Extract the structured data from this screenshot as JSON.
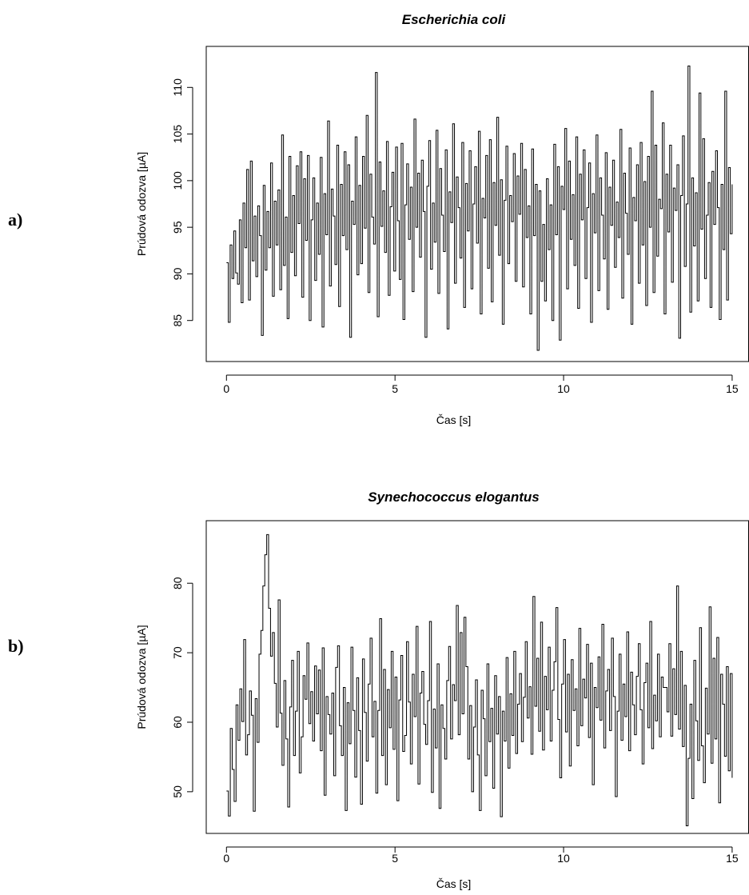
{
  "panels": {
    "a": {
      "letter": "a)"
    },
    "b": {
      "letter": "b)"
    }
  },
  "chart_data": [
    {
      "type": "line",
      "title": "Escherichia coli",
      "xlabel": "Čas [s]",
      "ylabel": "Prúdová odozva [µA]",
      "xlim": [
        -0.6,
        15.5
      ],
      "ylim": [
        80.6,
        114.4
      ],
      "xticks": [
        0,
        5,
        10,
        15
      ],
      "yticks": [
        85,
        90,
        95,
        100,
        105,
        110
      ],
      "grid": false,
      "legend": "none",
      "series": [
        {
          "x_start": 0,
          "x_end": 15,
          "x_step": 0.025,
          "y": [
            91.2,
            84.8,
            93.1,
            89.5,
            94.6,
            90.1,
            88.9,
            95.8,
            86.9,
            97.6,
            92.8,
            101.2,
            87.2,
            102.1,
            91.4,
            96.2,
            89.7,
            97.3,
            94.1,
            83.4,
            99.5,
            90.4,
            96.7,
            92.8,
            101.9,
            87.6,
            97.8,
            93.1,
            99.0,
            88.3,
            104.9,
            90.9,
            96.1,
            85.2,
            102.6,
            92.3,
            98.4,
            89.8,
            101.6,
            95.4,
            103.1,
            87.5,
            100.2,
            93.6,
            102.7,
            85.0,
            95.8,
            100.3,
            89.3,
            97.6,
            92.1,
            102.5,
            84.3,
            98.6,
            94.2,
            106.4,
            88.7,
            99.1,
            96.2,
            91.0,
            103.8,
            86.5,
            99.6,
            94.1,
            103.1,
            92.6,
            101.7,
            83.2,
            97.8,
            95.3,
            104.7,
            89.9,
            99.5,
            91.1,
            102.6,
            94.9,
            107.0,
            88.0,
            100.7,
            96.1,
            93.2,
            111.6,
            85.4,
            102.0,
            95.1,
            98.9,
            92.3,
            104.2,
            87.7,
            97.2,
            100.9,
            90.3,
            103.6,
            95.7,
            89.4,
            104.0,
            85.1,
            97.4,
            101.8,
            93.7,
            99.3,
            88.1,
            106.6,
            95.0,
            100.8,
            91.8,
            102.2,
            96.7,
            83.2,
            99.4,
            104.3,
            90.5,
            97.6,
            93.4,
            105.4,
            87.9,
            101.3,
            96.3,
            92.4,
            103.3,
            84.1,
            98.8,
            95.5,
            106.1,
            89.0,
            100.4,
            97.1,
            91.7,
            104.1,
            86.4,
            99.7,
            94.6,
            103.2,
            88.4,
            97.5,
            101.5,
            93.3,
            105.3,
            85.7,
            98.1,
            96.0,
            102.7,
            90.6,
            104.4,
            87.0,
            99.8,
            95.2,
            106.8,
            92.0,
            100.1,
            84.6,
            97.9,
            103.7,
            91.1,
            98.4,
            95.6,
            102.9,
            89.2,
            100.5,
            96.4,
            104.0,
            88.6,
            101.2,
            93.9,
            97.3,
            85.7,
            103.4,
            94.1,
            99.6,
            81.8,
            98.9,
            89.2,
            95.3,
            87.1,
            100.2,
            92.6,
            97.4,
            85.0,
            103.9,
            94.2,
            101.5,
            82.9,
            99.4,
            96.9,
            105.6,
            88.4,
            102.1,
            93.7,
            98.5,
            90.9,
            104.7,
            86.3,
            100.7,
            95.8,
            103.3,
            89.5,
            97.1,
            101.9,
            84.8,
            98.6,
            94.4,
            104.9,
            88.2,
            100.3,
            96.3,
            91.6,
            103.0,
            86.2,
            99.3,
            95.2,
            102.2,
            90.7,
            97.7,
            93.9,
            105.5,
            87.4,
            100.8,
            96.5,
            92.1,
            103.5,
            84.6,
            98.2,
            95.7,
            101.7,
            89.0,
            104.1,
            93.1,
            99.9,
            86.6,
            102.6,
            95.0,
            109.6,
            88.0,
            103.8,
            91.9,
            98.0,
            97.0,
            106.2,
            85.7,
            100.7,
            94.5,
            103.8,
            89.1,
            99.2,
            96.8,
            101.7,
            83.1,
            98.4,
            104.8,
            90.8,
            97.5,
            112.3,
            85.9,
            100.3,
            93.0,
            98.7,
            87.1,
            109.4,
            94.8,
            104.5,
            89.5,
            96.3,
            99.8,
            86.4,
            101.0,
            95.3,
            103.2,
            97.1,
            85.1,
            99.6,
            92.6,
            109.6,
            87.2,
            101.4,
            94.3,
            99.6
          ]
        }
      ]
    },
    {
      "type": "line",
      "title": "Synechococcus elogantus",
      "xlabel": "Čas [s]",
      "ylabel": "Prúdová odozva [µA]",
      "xlim": [
        -0.6,
        15.5
      ],
      "ylim": [
        44.0,
        89.0
      ],
      "xticks": [
        0,
        5,
        10,
        15
      ],
      "yticks": [
        50,
        60,
        70,
        80
      ],
      "grid": false,
      "legend": "none",
      "series": [
        {
          "x_start": 0,
          "x_end": 15,
          "x_step": 0.025,
          "y": [
            50.1,
            46.5,
            59.1,
            53.2,
            48.6,
            62.5,
            57.4,
            64.8,
            60.1,
            71.9,
            55.3,
            58.2,
            64.5,
            61.0,
            47.2,
            63.4,
            57.1,
            69.8,
            73.2,
            79.6,
            84.1,
            87.0,
            76.4,
            69.5,
            72.9,
            65.6,
            59.3,
            77.6,
            61.3,
            53.8,
            66.0,
            57.6,
            47.8,
            62.2,
            68.9,
            55.2,
            61.6,
            70.2,
            52.7,
            57.9,
            66.7,
            63.3,
            71.4,
            59.8,
            64.4,
            57.3,
            68.1,
            61.2,
            67.5,
            55.9,
            70.7,
            49.5,
            63.7,
            61.1,
            58.3,
            64.2,
            52.3,
            67.9,
            71.0,
            59.5,
            55.2,
            65.0,
            47.3,
            62.8,
            56.9,
            70.8,
            61.7,
            52.1,
            66.4,
            58.8,
            48.2,
            69.1,
            61.4,
            54.4,
            65.5,
            72.1,
            57.9,
            63.0,
            49.8,
            61.7,
            74.9,
            55.2,
            67.6,
            51.0,
            64.7,
            59.2,
            70.2,
            56.1,
            66.5,
            48.7,
            63.2,
            69.6,
            55.8,
            58.1,
            71.6,
            62.9,
            54.0,
            66.9,
            60.8,
            73.8,
            51.1,
            64.2,
            67.3,
            59.7,
            56.8,
            63.1,
            74.5,
            49.9,
            61.9,
            56.3,
            68.4,
            47.6,
            62.5,
            59.1,
            54.7,
            66.0,
            70.9,
            57.6,
            65.4,
            63.1,
            76.8,
            58.2,
            72.9,
            61.2,
            75.1,
            68.0,
            54.7,
            62.4,
            50.0,
            59.3,
            66.1,
            55.3,
            47.3,
            64.6,
            60.5,
            52.3,
            68.4,
            57.2,
            62.0,
            50.5,
            66.7,
            58.3,
            63.7,
            46.4,
            61.6,
            57.3,
            69.3,
            53.4,
            64.1,
            58.1,
            70.2,
            55.5,
            62.6,
            67.0,
            57.2,
            63.6,
            71.6,
            60.6,
            65.1,
            55.4,
            78.1,
            62.3,
            69.2,
            58.7,
            74.4,
            56.0,
            66.6,
            61.8,
            70.8,
            57.3,
            64.6,
            68.7,
            76.5,
            60.4,
            52.0,
            65.5,
            71.9,
            58.6,
            66.9,
            53.7,
            69.0,
            61.7,
            64.8,
            56.6,
            73.5,
            59.5,
            66.2,
            63.5,
            71.2,
            57.8,
            68.5,
            51.0,
            65.0,
            62.1,
            69.4,
            60.3,
            74.1,
            56.3,
            64.5,
            67.6,
            58.8,
            72.1,
            63.7,
            49.3,
            61.6,
            69.8,
            57.4,
            65.5,
            60.8,
            73.0,
            55.9,
            67.2,
            62.5,
            58.2,
            66.6,
            71.3,
            61.8,
            54.0,
            65.7,
            68.5,
            59.2,
            74.5,
            56.2,
            63.9,
            60.2,
            69.8,
            57.9,
            66.5,
            65.0,
            65.0,
            61.5,
            71.3,
            58.0,
            67.7,
            61.1,
            79.6,
            59.0,
            70.2,
            56.5,
            65.3,
            45.1,
            54.8,
            62.6,
            49.0,
            68.9,
            60.2,
            54.5,
            73.6,
            56.6,
            51.3,
            64.9,
            58.3,
            76.6,
            54.1,
            69.2,
            57.6,
            72.2,
            48.4,
            66.9,
            62.6,
            55.1,
            68.0,
            53.0,
            67.0,
            52.0
          ]
        }
      ]
    }
  ]
}
